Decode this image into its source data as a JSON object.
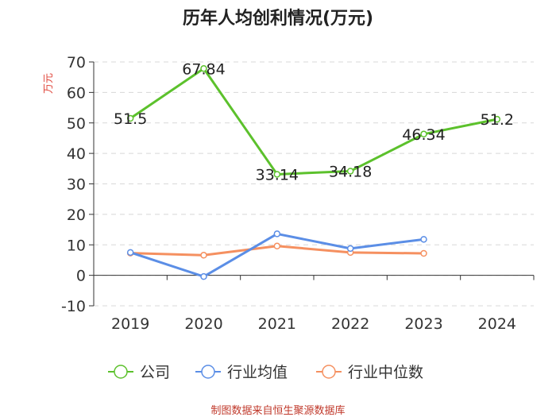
{
  "chart_data": {
    "type": "line",
    "title": "历年人均创利情况(万元)",
    "ylabel": "万元",
    "xlabel": "",
    "ylim": [
      -10,
      70
    ],
    "yticks": [
      -10,
      0,
      10,
      20,
      30,
      40,
      50,
      60,
      70
    ],
    "categories": [
      "2019",
      "2020",
      "2021",
      "2022",
      "2023",
      "2024"
    ],
    "series": [
      {
        "name": "公司",
        "color": "#5cc12c",
        "values": [
          51.5,
          67.84,
          33.14,
          34.18,
          46.34,
          51.2
        ],
        "labels": [
          "51.5",
          "67.84",
          "33.14",
          "34.18",
          "46.34",
          "51.2"
        ]
      },
      {
        "name": "行业均值",
        "color": "#5b8ee6",
        "values": [
          7.5,
          -0.4,
          13.6,
          8.8,
          11.8,
          null
        ]
      },
      {
        "name": "行业中位数",
        "color": "#f59060",
        "values": [
          7.3,
          6.6,
          9.6,
          7.5,
          7.2,
          null
        ]
      }
    ],
    "legend_position": "bottom",
    "grid": true
  },
  "source": "制图数据来自恒生聚源数据库"
}
